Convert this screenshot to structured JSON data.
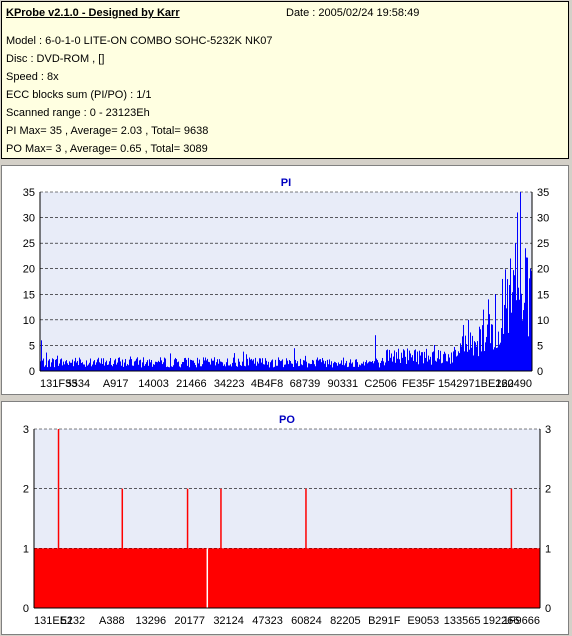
{
  "header": {
    "app_title": "KProbe v2.1.0 - Designed by Karr",
    "date": "Date : 2005/02/24 19:58:49"
  },
  "info": {
    "model": "Model : 6-0-1-0 LITE-ON COMBO SOHC-5232K NK07",
    "disc": "Disc : DVD-ROM ,  []",
    "speed": "Speed : 8x",
    "ecc": "ECC blocks sum (PI/PO) : 1/1",
    "range": "Scanned range : 0 - 23123Eh",
    "pi_stats": "PI Max= 35 , Average= 2.03 , Total= 9638",
    "po_stats": "PO Max= 3 , Average= 0.65 , Total= 3089"
  },
  "colors": {
    "pi_bar": "#0000ff",
    "po_bar": "#ff0000",
    "plot_bg": "#e8ecf8",
    "title": "#0000c0",
    "grid": "#000000"
  },
  "chart_data": [
    {
      "type": "bar",
      "title": "PI",
      "ylim": [
        0,
        35
      ],
      "yticks": [
        0,
        5,
        10,
        15,
        20,
        25,
        30,
        35
      ],
      "xtick_labels": [
        "131F33",
        "5534",
        "A917",
        "14003",
        "21466",
        "34223",
        "4B4F8",
        "68739",
        "90331",
        "C2506",
        "FE35F",
        "154297",
        "1BE162",
        "220490"
      ],
      "grid": "dashed horizontal",
      "profile": {
        "baseline_sections": [
          {
            "from": 0.0,
            "to": 0.7,
            "level": 2.0
          },
          {
            "from": 0.7,
            "to": 0.85,
            "level": 3.5
          },
          {
            "from": 0.85,
            "to": 0.93,
            "level": 6
          },
          {
            "from": 0.93,
            "to": 1.0,
            "level": 11
          }
        ],
        "peaks": [
          {
            "x": 0.975,
            "value": 35
          },
          {
            "x": 0.97,
            "value": 31
          },
          {
            "x": 0.965,
            "value": 25
          },
          {
            "x": 0.985,
            "value": 24
          },
          {
            "x": 0.955,
            "value": 22
          },
          {
            "x": 0.995,
            "value": 20
          },
          {
            "x": 0.94,
            "value": 18
          },
          {
            "x": 0.925,
            "value": 15
          },
          {
            "x": 0.91,
            "value": 14
          },
          {
            "x": 0.9,
            "value": 12
          },
          {
            "x": 0.87,
            "value": 10
          },
          {
            "x": 0.86,
            "value": 9
          },
          {
            "x": 0.003,
            "value": 6
          },
          {
            "x": 0.68,
            "value": 7
          }
        ]
      }
    },
    {
      "type": "bar",
      "title": "PO",
      "ylim": [
        0,
        3
      ],
      "yticks": [
        0,
        1,
        2,
        3
      ],
      "xtick_labels": [
        "131EE1",
        "5232",
        "A388",
        "13296",
        "20177",
        "32124",
        "47323",
        "60824",
        "82205",
        "B291F",
        "E9053",
        "133565",
        "192266",
        "1F9666"
      ],
      "grid": "dashed horizontal",
      "baseline": 1,
      "gaps": [
        0.341
      ],
      "spikes": [
        {
          "x": 0.047,
          "value": 3
        },
        {
          "x": 0.173,
          "value": 2
        },
        {
          "x": 0.302,
          "value": 2
        },
        {
          "x": 0.368,
          "value": 2
        },
        {
          "x": 0.536,
          "value": 2
        },
        {
          "x": 0.942,
          "value": 2
        }
      ]
    }
  ]
}
